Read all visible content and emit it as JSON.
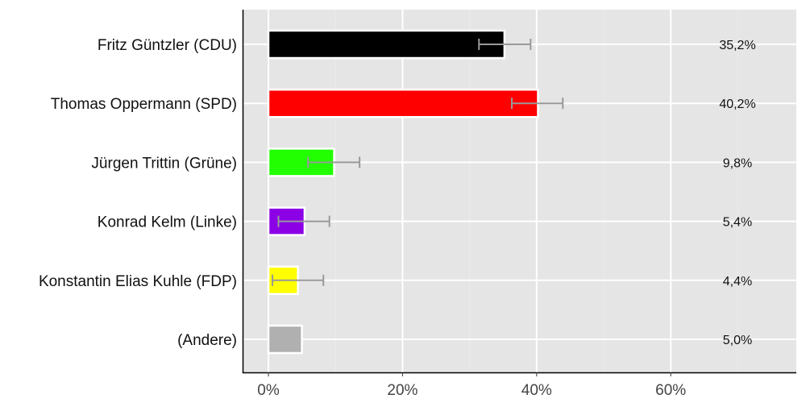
{
  "chart_data": {
    "type": "bar",
    "orientation": "horizontal",
    "title": "",
    "xlabel": "",
    "ylabel": "",
    "xlim": [
      -4,
      78
    ],
    "x_ticks": [
      "0%",
      "20%",
      "40%",
      "60%"
    ],
    "x_tick_values": [
      0,
      20,
      40,
      60
    ],
    "grid": true,
    "categories": [
      "Fritz Güntzler (CDU)",
      "Thomas Oppermann (SPD)",
      "Jürgen Trittin (Grüne)",
      "Konrad Kelm (Linke)",
      "Konstantin Elias Kuhle (FDP)",
      "(Andere)"
    ],
    "values": [
      35.2,
      40.2,
      9.8,
      5.4,
      4.4,
      5.0
    ],
    "value_labels": [
      "35,2%",
      "40,2%",
      "9,8%",
      "5,4%",
      "4,4%",
      "5,0%"
    ],
    "colors": [
      "#000000",
      "#ff0000",
      "#22ff00",
      "#8c00e6",
      "#ffff00",
      "#b0b0b0"
    ],
    "error_bars": [
      [
        31.4,
        39.1
      ],
      [
        36.3,
        43.9
      ],
      [
        5.9,
        13.6
      ],
      [
        1.5,
        9.1
      ],
      [
        0.6,
        8.2
      ],
      null
    ]
  }
}
